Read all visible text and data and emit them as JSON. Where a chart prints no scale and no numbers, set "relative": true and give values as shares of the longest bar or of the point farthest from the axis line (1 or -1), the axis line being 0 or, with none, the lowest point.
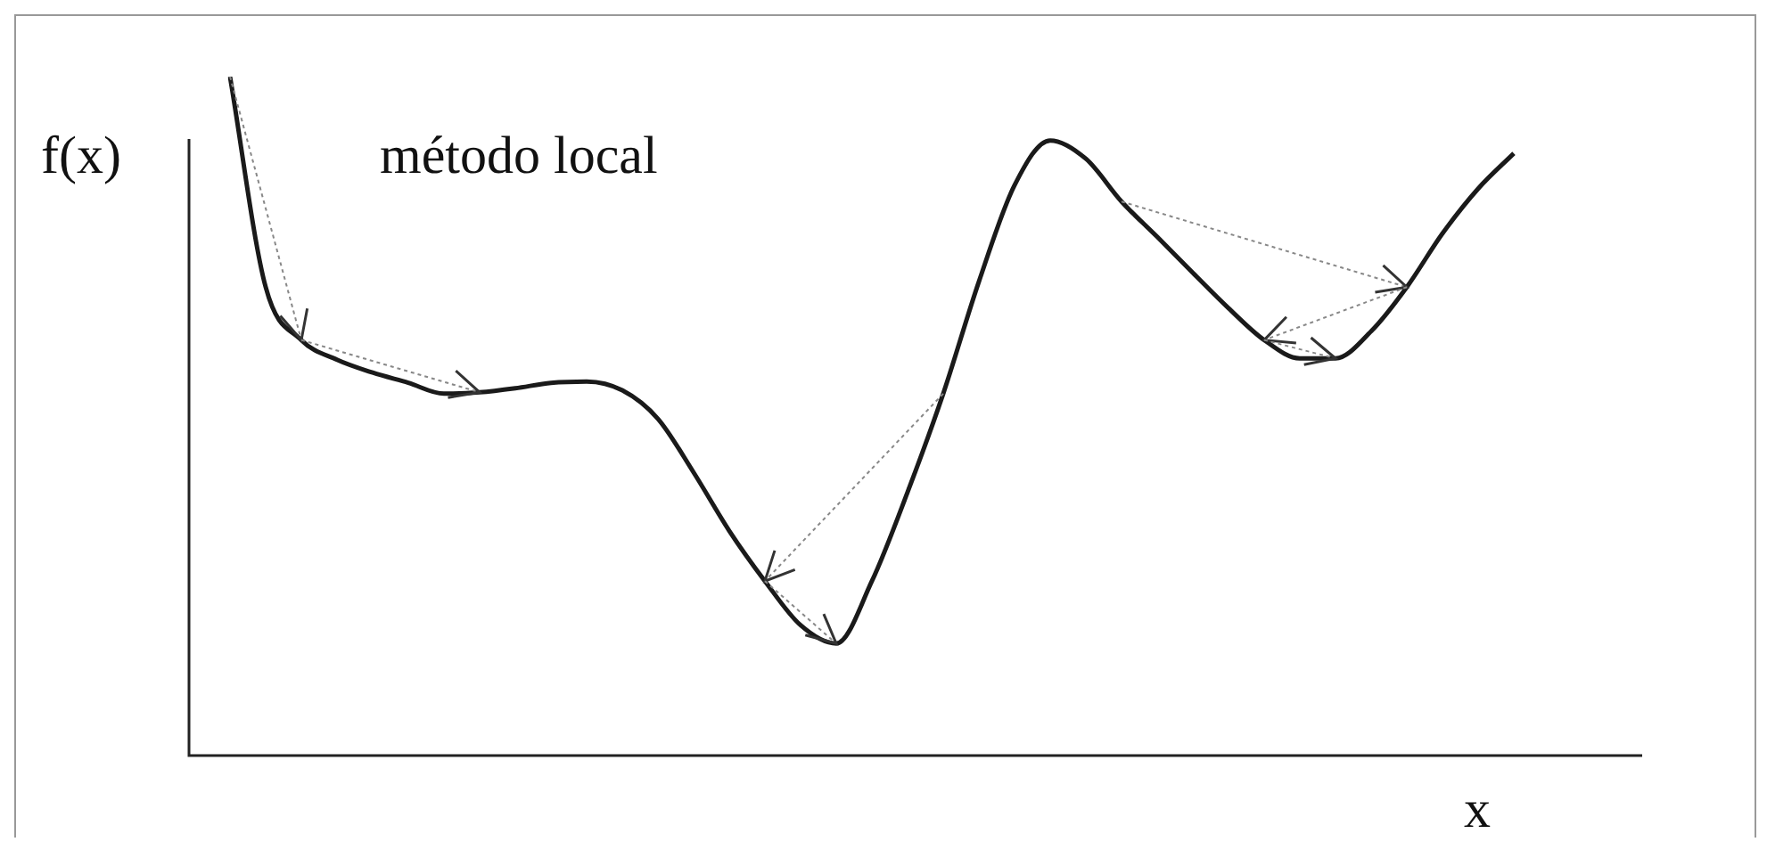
{
  "chart_data": {
    "type": "line",
    "relative": true,
    "xlabel": "x",
    "ylabel": "f(x)",
    "annotations": [
      "método local"
    ],
    "color": "#1a1a1a",
    "marker": "none",
    "legend": false,
    "tick_labels": false,
    "categories": [
      null,
      null,
      null,
      null,
      null,
      null,
      null,
      null,
      null,
      null,
      null,
      null,
      null,
      null,
      null,
      null,
      null,
      null,
      null,
      null,
      null,
      null,
      null,
      null,
      null,
      null,
      null,
      null,
      null,
      null,
      null,
      null,
      null,
      null,
      null,
      null,
      null
    ],
    "values": [
      1,
      0.69,
      0.612,
      0.583,
      0.564,
      0.549,
      0.533,
      0.535,
      0.541,
      0.549,
      0.551,
      0.538,
      0.496,
      0.417,
      0.331,
      0.257,
      0.192,
      0.165,
      0.257,
      0.388,
      0.533,
      0.698,
      0.84,
      0.906,
      0.879,
      0.816,
      0.764,
      0.711,
      0.659,
      0.612,
      0.585,
      0.585,
      0.625,
      0.69,
      0.769,
      0.835,
      0.887
    ]
  }
}
